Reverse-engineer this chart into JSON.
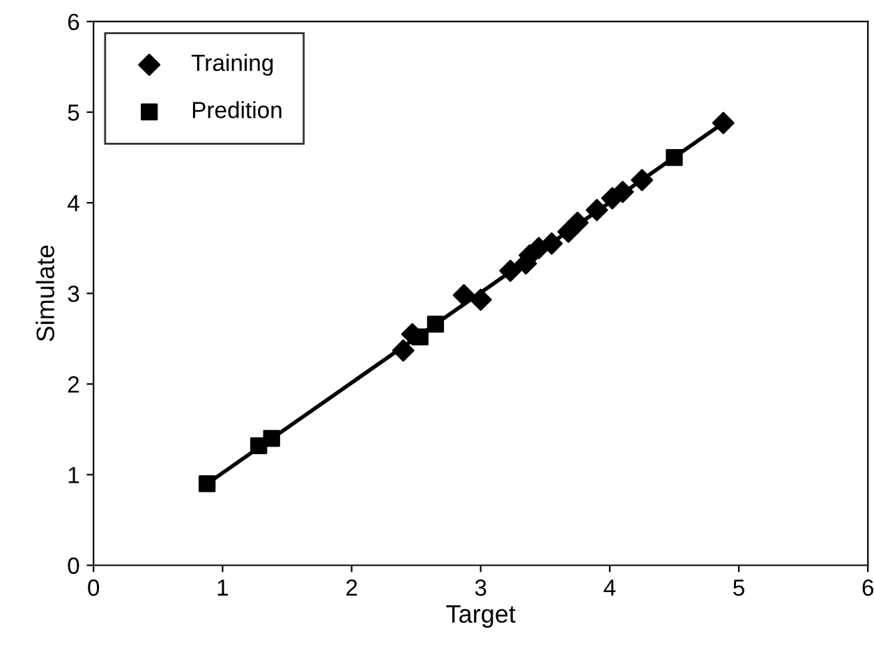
{
  "chart_data": {
    "type": "scatter",
    "xlabel": "Target",
    "ylabel": "Simulate",
    "xlim": [
      0,
      6
    ],
    "ylim": [
      0,
      6
    ],
    "xticks": [
      0,
      1,
      2,
      3,
      4,
      5,
      6
    ],
    "yticks": [
      0,
      1,
      2,
      3,
      4,
      5,
      6
    ],
    "grid": false,
    "legend": "top left",
    "series": [
      {
        "type": "line",
        "color": "#000000",
        "marker": "none",
        "line_style": "solid",
        "x": [
          0.88,
          4.88
        ],
        "values": [
          0.9,
          4.88
        ]
      },
      {
        "name": "Training",
        "color": "#000000",
        "marker": "diamond",
        "x": [
          2.4,
          2.47,
          2.87,
          3.0,
          3.23,
          3.35,
          3.38,
          3.45,
          3.55,
          3.68,
          3.75,
          3.9,
          4.02,
          4.1,
          4.25,
          4.88
        ],
        "values": [
          2.37,
          2.55,
          2.98,
          2.93,
          3.25,
          3.33,
          3.42,
          3.5,
          3.55,
          3.68,
          3.78,
          3.92,
          4.05,
          4.12,
          4.25,
          4.88
        ]
      },
      {
        "name": "Predition",
        "color": "#000000",
        "marker": "square",
        "x": [
          0.88,
          1.28,
          1.38,
          2.53,
          2.65,
          4.5
        ],
        "values": [
          0.9,
          1.32,
          1.4,
          2.52,
          2.66,
          4.5
        ]
      }
    ]
  }
}
